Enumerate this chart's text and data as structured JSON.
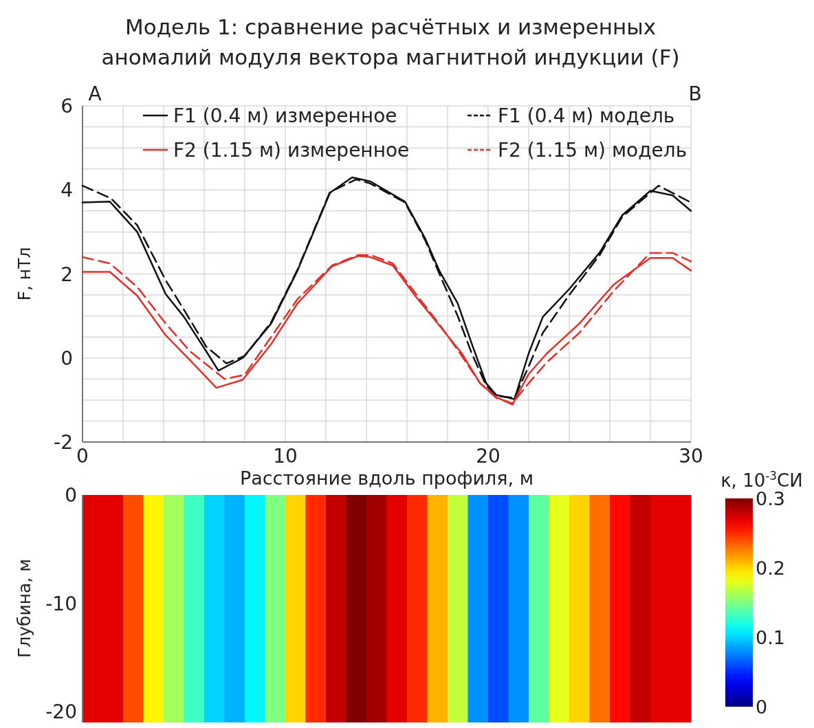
{
  "chart_data": [
    {
      "type": "line",
      "title": "Модель 1: сравнение расчётных и измеренных\nаномалий модуля вектора магнитной индукции (F)",
      "xlabel": "Расстояние вдоль профиля, м",
      "ylabel": "F, нТл",
      "xlim": [
        0,
        30
      ],
      "ylim": [
        -2,
        6
      ],
      "xticks": [
        0,
        {
          "value": 2,
          "label": null
        },
        {
          "value": 4,
          "label": null
        },
        {
          "value": 6,
          "label": null
        },
        {
          "value": 8,
          "label": null
        },
        10,
        {
          "value": 12,
          "label": null
        },
        {
          "value": 14,
          "label": null
        },
        {
          "value": 16,
          "label": null
        },
        {
          "value": 18,
          "label": null
        },
        20,
        {
          "value": 22,
          "label": null
        },
        {
          "value": 24,
          "label": null
        },
        {
          "value": 26,
          "label": null
        },
        {
          "value": 28,
          "label": null
        },
        30
      ],
      "yticks": [
        -2,
        {
          "value": -1.5,
          "label": null
        },
        {
          "value": -1,
          "label": null
        },
        {
          "value": -0.5,
          "label": null
        },
        0,
        {
          "value": 0.5,
          "label": null
        },
        {
          "value": 1,
          "label": null
        },
        {
          "value": 1.5,
          "label": null
        },
        2,
        {
          "value": 2.5,
          "label": null
        },
        {
          "value": 3,
          "label": null
        },
        {
          "value": 3.5,
          "label": null
        },
        4,
        {
          "value": 4.5,
          "label": null
        },
        {
          "value": 5,
          "label": null
        },
        {
          "value": 5.5,
          "label": null
        },
        6
      ],
      "grid": true,
      "legend": "top",
      "annotations": [
        "A",
        "B"
      ],
      "series": [
        {
          "name": "F1 (0.4 м) измеренное",
          "color": "#111111",
          "line_style": "solid",
          "x": [
            0,
            1.35,
            2.7,
            4.1,
            5.0,
            6.1,
            6.7,
            7.9,
            9.3,
            10.6,
            12.2,
            13.3,
            14.2,
            15.9,
            16.9,
            17.6,
            18.5,
            19.2,
            19.9,
            20.4,
            21.3,
            22.0,
            22.7,
            24.0,
            25.5,
            26.6,
            28.0,
            29.1,
            30
          ],
          "values": [
            3.7,
            3.72,
            3.0,
            1.52,
            0.98,
            0.16,
            -0.3,
            0.0,
            0.82,
            2.08,
            3.93,
            4.3,
            4.2,
            3.72,
            2.84,
            2.07,
            1.3,
            0.33,
            -0.6,
            -0.88,
            -0.98,
            0.11,
            0.98,
            1.64,
            2.51,
            3.39,
            3.98,
            3.87,
            3.5
          ]
        },
        {
          "name": "F1 (0.4 м) модель",
          "color": "#111111",
          "line_style": "dashed",
          "x": [
            0,
            1.4,
            2.7,
            4.1,
            5.0,
            6.1,
            7.1,
            8.0,
            9.3,
            10.6,
            12.2,
            13.5,
            14.2,
            15.9,
            16.9,
            17.6,
            18.5,
            19.2,
            19.9,
            20.4,
            21.3,
            22.0,
            22.7,
            24.0,
            25.5,
            26.6,
            28.4,
            30
          ],
          "values": [
            4.1,
            3.8,
            3.16,
            1.85,
            1.15,
            0.27,
            -0.13,
            0.05,
            0.85,
            2.1,
            3.95,
            4.25,
            4.15,
            3.7,
            2.8,
            2.0,
            1.0,
            0.1,
            -0.65,
            -0.9,
            -0.95,
            -0.2,
            0.6,
            1.5,
            2.45,
            3.35,
            4.1,
            3.7
          ]
        },
        {
          "name": "F2 (1.15 м) измеренное",
          "color": "#e0302c",
          "line_style": "solid",
          "x": [
            0,
            1.35,
            2.7,
            4.1,
            5.3,
            6.6,
            7.9,
            9.3,
            10.6,
            12.3,
            13.6,
            14.2,
            15.3,
            16.4,
            17.6,
            18.7,
            19.6,
            20.4,
            21.2,
            22.0,
            22.9,
            24.5,
            26.2,
            28.0,
            29.1,
            30
          ],
          "values": [
            2.05,
            2.05,
            1.48,
            0.54,
            -0.05,
            -0.71,
            -0.52,
            0.33,
            1.3,
            2.18,
            2.43,
            2.4,
            2.2,
            1.48,
            0.77,
            0.11,
            -0.6,
            -0.93,
            -1.11,
            -0.38,
            0.11,
            0.82,
            1.75,
            2.38,
            2.38,
            2.08
          ]
        },
        {
          "name": "F2 (1.15 м) модель",
          "color": "#e0302c",
          "line_style": "dashed",
          "x": [
            0,
            1.35,
            2.7,
            4.1,
            5.3,
            7.0,
            8.0,
            9.3,
            10.6,
            12.3,
            13.6,
            14.2,
            15.3,
            16.4,
            17.6,
            18.7,
            19.6,
            20.4,
            21.2,
            22.0,
            22.9,
            24.5,
            26.2,
            28.0,
            29.1,
            30
          ],
          "values": [
            2.4,
            2.25,
            1.69,
            0.82,
            0.16,
            -0.5,
            -0.4,
            0.5,
            1.4,
            2.2,
            2.45,
            2.45,
            2.25,
            1.55,
            0.8,
            0.05,
            -0.6,
            -0.95,
            -1.08,
            -0.6,
            -0.1,
            0.6,
            1.6,
            2.5,
            2.5,
            2.3
          ]
        }
      ]
    },
    {
      "type": "heatmap",
      "ylabel": "Глубина, м",
      "clabel": "κ, 10$^{-3}$СИ",
      "xlim": [
        0,
        30
      ],
      "ylim": [
        -21,
        0
      ],
      "yticks": [
        0,
        -10,
        -20
      ],
      "tick_labels": "y",
      "clim": [
        0,
        0.3
      ],
      "cticks": [
        0,
        0.1,
        0.2,
        0.3
      ],
      "x": [
        0.5,
        1.5,
        2.5,
        3.5,
        4.5,
        5.5,
        6.5,
        7.5,
        8.5,
        9.5,
        10.5,
        11.5,
        12.5,
        13.5,
        14.5,
        15.5,
        16.5,
        17.5,
        18.5,
        19.5,
        20.5,
        21.5,
        22.5,
        23.5,
        24.5,
        25.5,
        26.5,
        27.5,
        28.5,
        29.5
      ],
      "cells": [
        [
          0.27,
          0.27,
          0.24,
          0.19,
          0.16,
          0.13,
          0.1,
          0.09,
          0.11,
          0.15,
          0.2,
          0.25,
          0.28,
          0.3,
          0.29,
          0.27,
          0.25,
          0.21,
          0.17,
          0.08,
          0.06,
          0.08,
          0.14,
          0.18,
          0.2,
          0.23,
          0.26,
          0.28,
          0.27,
          0.27
        ]
      ]
    }
  ]
}
